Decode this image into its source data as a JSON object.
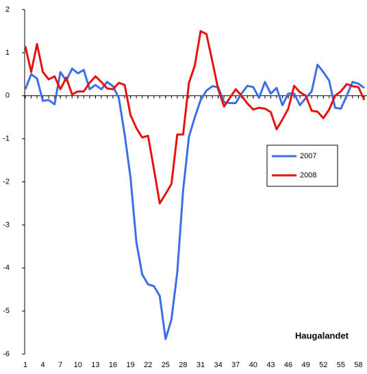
{
  "chart_data": {
    "type": "line",
    "annotation": "Haugalandet",
    "x": [
      1,
      2,
      3,
      4,
      5,
      6,
      7,
      8,
      9,
      10,
      11,
      12,
      13,
      14,
      15,
      16,
      17,
      18,
      19,
      20,
      21,
      22,
      23,
      24,
      25,
      26,
      27,
      28,
      29,
      30,
      31,
      32,
      33,
      34,
      35,
      36,
      37,
      38,
      39,
      40,
      41,
      42,
      43,
      44,
      45,
      46,
      47,
      48,
      49,
      50,
      51,
      52,
      53,
      54,
      55,
      56,
      57,
      58,
      59
    ],
    "series": [
      {
        "name": "2007",
        "color": "#3a6fe8",
        "values": [
          0.15,
          0.5,
          0.4,
          -0.12,
          -0.1,
          -0.2,
          0.55,
          0.35,
          0.63,
          0.52,
          0.6,
          0.15,
          0.25,
          0.15,
          0.32,
          0.22,
          -0.05,
          -0.9,
          -1.9,
          -3.4,
          -4.15,
          -4.38,
          -4.42,
          -4.65,
          -5.65,
          -5.2,
          -4.1,
          -2.2,
          -0.95,
          -0.5,
          -0.1,
          0.12,
          0.22,
          0.2,
          -0.15,
          -0.17,
          -0.17,
          0.05,
          0.23,
          0.2,
          -0.05,
          0.32,
          0.05,
          0.18,
          -0.22,
          0.05,
          0.05,
          -0.22,
          -0.05,
          0.1,
          0.72,
          0.55,
          0.35,
          -0.28,
          -0.3,
          0.0,
          0.32,
          0.28,
          0.18
        ]
      },
      {
        "name": "2008",
        "color": "#e8120c",
        "values": [
          1.15,
          0.55,
          1.2,
          0.55,
          0.38,
          0.45,
          0.15,
          0.42,
          0.03,
          0.1,
          0.1,
          0.3,
          0.45,
          0.32,
          0.17,
          0.15,
          0.3,
          0.25,
          -0.45,
          -0.75,
          -0.97,
          -0.93,
          -1.7,
          -2.5,
          -2.28,
          -2.05,
          -0.9,
          -0.9,
          0.3,
          0.7,
          1.5,
          1.43,
          0.8,
          0.15,
          -0.25,
          -0.05,
          0.15,
          0.0,
          -0.18,
          -0.32,
          -0.28,
          -0.3,
          -0.38,
          -0.78,
          -0.55,
          -0.3,
          0.23,
          0.08,
          0.0,
          -0.35,
          -0.37,
          -0.52,
          -0.32,
          0.0,
          0.1,
          0.27,
          0.22,
          0.2,
          -0.1
        ]
      }
    ],
    "xlim": [
      1,
      59
    ],
    "xticks": [
      1,
      4,
      7,
      10,
      13,
      16,
      19,
      22,
      25,
      28,
      31,
      34,
      37,
      40,
      43,
      46,
      49,
      52,
      55,
      58
    ],
    "ylim": [
      -6,
      2
    ],
    "yticks": [
      -6,
      -5,
      -4,
      -3,
      -2,
      -1,
      0,
      1,
      2
    ]
  }
}
